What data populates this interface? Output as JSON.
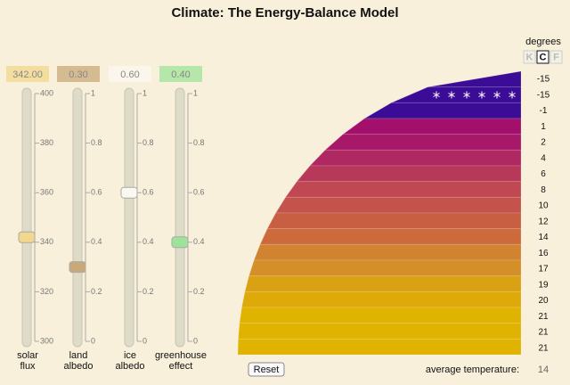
{
  "title": "Climate: The Energy-Balance Model",
  "sliders": [
    {
      "label": [
        "solar",
        "flux"
      ],
      "value": 342,
      "value_label": "342.00",
      "lim": [
        300,
        400
      ],
      "ticks": [
        300,
        320,
        340,
        360,
        380,
        400
      ],
      "color": "#f2d88c"
    },
    {
      "label": [
        "land",
        "albedo"
      ],
      "value": 0.3,
      "value_label": "0.30",
      "lim": [
        0,
        1
      ],
      "ticks": [
        0,
        0.2,
        0.4,
        0.6,
        0.8,
        1
      ],
      "color": "#c9a97a"
    },
    {
      "label": [
        "ice",
        "albedo"
      ],
      "value": 0.6,
      "value_label": "0.60",
      "lim": [
        0,
        1
      ],
      "ticks": [
        0,
        0.2,
        0.4,
        0.6,
        0.8,
        1
      ],
      "color": "#fbf8f0"
    },
    {
      "label": [
        "greenhouse",
        "effect"
      ],
      "value": 0.4,
      "value_label": "0.40",
      "lim": [
        0,
        1
      ],
      "ticks": [
        0,
        0.2,
        0.4,
        0.6,
        0.8,
        1
      ],
      "color": "#9fe39a"
    }
  ],
  "units": {
    "title": "degrees",
    "options": [
      "K",
      "C",
      "F"
    ],
    "selected": 1
  },
  "bands": [
    {
      "temperature": -15,
      "ice": true
    },
    {
      "temperature": -15,
      "ice": true
    },
    {
      "temperature": -1,
      "ice": false
    },
    {
      "temperature": 1,
      "ice": false
    },
    {
      "temperature": 2,
      "ice": false
    },
    {
      "temperature": 4,
      "ice": false
    },
    {
      "temperature": 6,
      "ice": false
    },
    {
      "temperature": 8,
      "ice": false
    },
    {
      "temperature": 10,
      "ice": false
    },
    {
      "temperature": 12,
      "ice": false
    },
    {
      "temperature": 14,
      "ice": false
    },
    {
      "temperature": 16,
      "ice": false
    },
    {
      "temperature": 17,
      "ice": false
    },
    {
      "temperature": 19,
      "ice": false
    },
    {
      "temperature": 20,
      "ice": false
    },
    {
      "temperature": 21,
      "ice": false
    },
    {
      "temperature": 21,
      "ice": false
    },
    {
      "temperature": 21,
      "ice": false
    }
  ],
  "reset": "Reset",
  "average_label": "average temperature:",
  "average": 14
}
